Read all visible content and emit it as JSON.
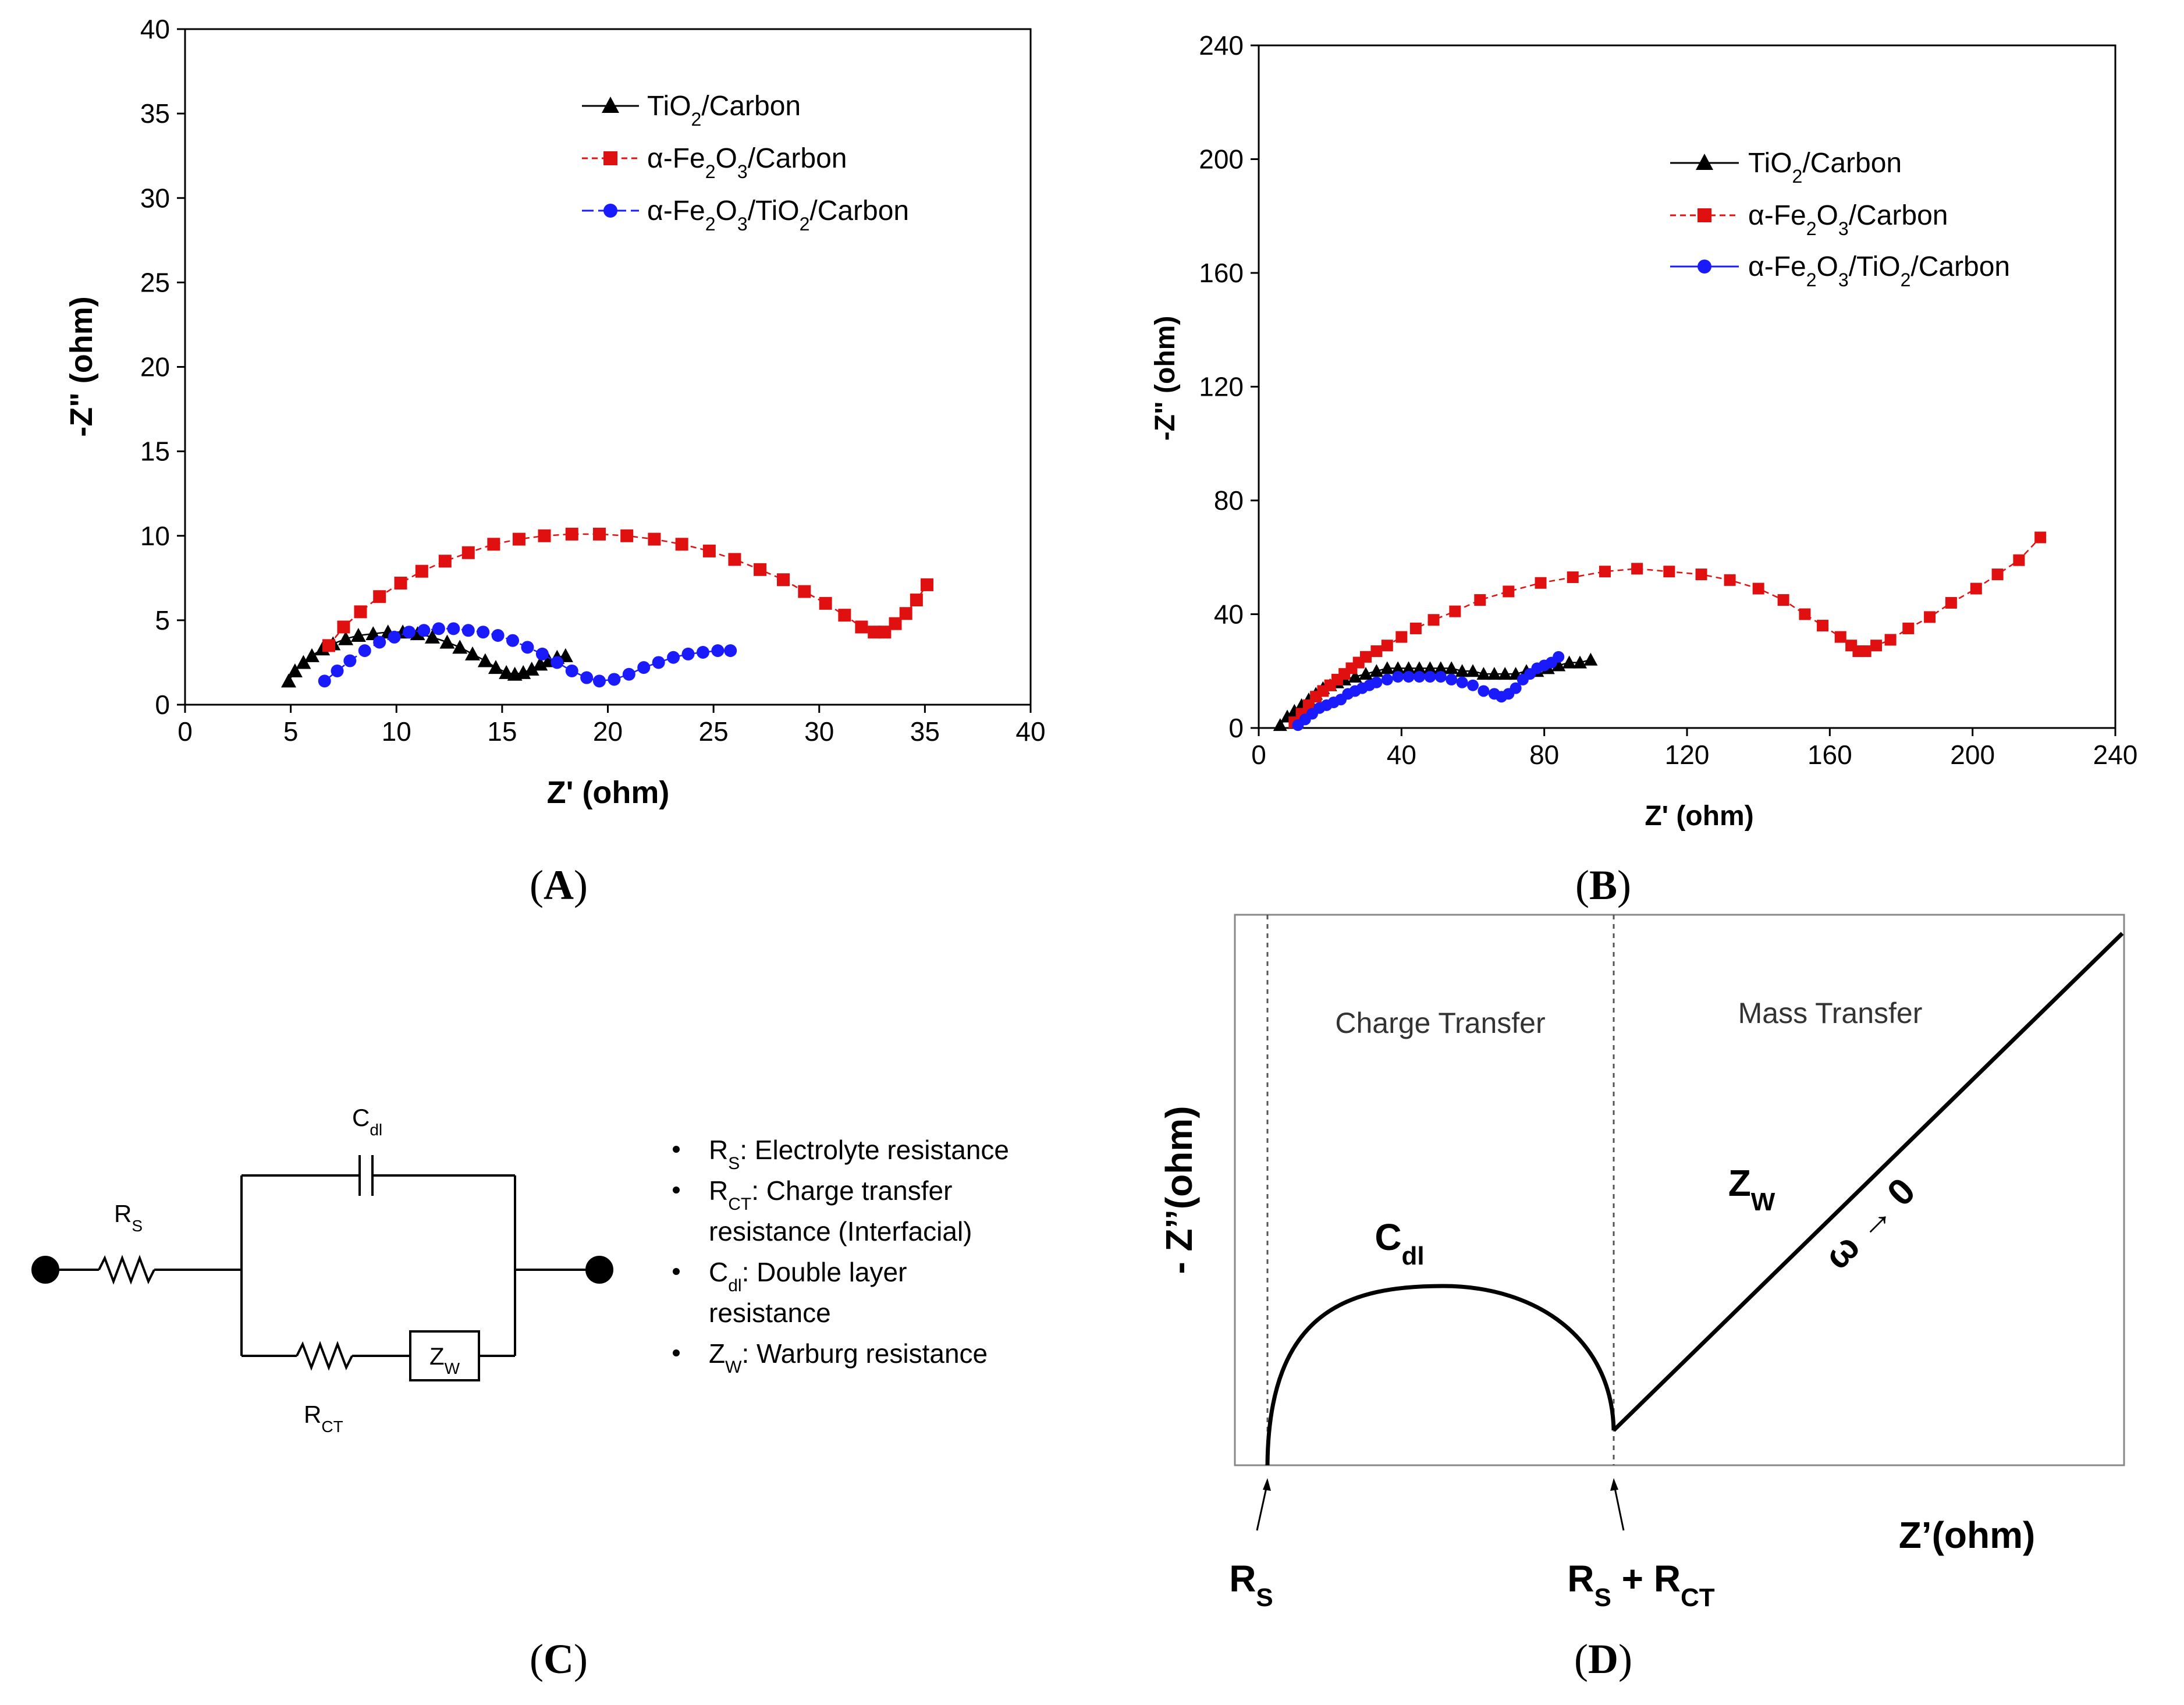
{
  "chart_data": [
    {
      "panel": "A",
      "type": "scatter",
      "xlabel": "Z' (ohm)",
      "ylabel": "-Z\" (ohm)",
      "xlim": [
        0,
        40
      ],
      "ylim": [
        0,
        40
      ],
      "xticks": [
        "0",
        "5",
        "10",
        "15",
        "20",
        "25",
        "30",
        "35",
        "40"
      ],
      "yticks": [
        "0",
        "5",
        "10",
        "15",
        "20",
        "25",
        "30",
        "35",
        "40"
      ],
      "legend": [
        "TiO2/Carbon",
        "α-Fe2O3/Carbon",
        "α-Fe2O3/TiO2/Carbon"
      ],
      "series": [
        {
          "name": "TiO2/Carbon",
          "color": "#000000",
          "marker": "triangle",
          "x": [
            4.9,
            5.2,
            5.6,
            6.0,
            6.5,
            7.0,
            7.6,
            8.2,
            8.9,
            9.6,
            10.3,
            11.0,
            11.7,
            12.4,
            13.0,
            13.6,
            14.2,
            14.7,
            15.2,
            15.6,
            16.0,
            16.4,
            16.8,
            17.2,
            17.6,
            18.0
          ],
          "y": [
            1.4,
            2.0,
            2.5,
            2.9,
            3.3,
            3.6,
            3.9,
            4.1,
            4.2,
            4.3,
            4.3,
            4.2,
            4.0,
            3.7,
            3.4,
            3.0,
            2.6,
            2.2,
            1.9,
            1.8,
            1.9,
            2.1,
            2.4,
            2.6,
            2.8,
            2.9
          ]
        },
        {
          "name": "α-Fe2O3/Carbon",
          "color": "#e01010",
          "marker": "square",
          "x": [
            6.8,
            7.5,
            8.3,
            9.2,
            10.2,
            11.2,
            12.3,
            13.4,
            14.6,
            15.8,
            17.0,
            18.3,
            19.6,
            20.9,
            22.2,
            23.5,
            24.8,
            26.0,
            27.2,
            28.3,
            29.3,
            30.3,
            31.2,
            32.0,
            32.6,
            33.1,
            33.6,
            34.1,
            34.6,
            35.1
          ],
          "y": [
            3.5,
            4.6,
            5.5,
            6.4,
            7.2,
            7.9,
            8.5,
            9.0,
            9.5,
            9.8,
            10.0,
            10.1,
            10.1,
            10.0,
            9.8,
            9.5,
            9.1,
            8.6,
            8.0,
            7.4,
            6.7,
            6.0,
            5.3,
            4.6,
            4.3,
            4.3,
            4.8,
            5.4,
            6.2,
            7.1
          ]
        },
        {
          "name": "α-Fe2O3/TiO2/Carbon",
          "color": "#1a1aff",
          "marker": "circle",
          "x": [
            6.6,
            7.2,
            7.8,
            8.5,
            9.2,
            9.9,
            10.6,
            11.3,
            12.0,
            12.7,
            13.4,
            14.1,
            14.8,
            15.5,
            16.2,
            16.9,
            17.6,
            18.3,
            19.0,
            19.6,
            20.3,
            21.0,
            21.7,
            22.4,
            23.1,
            23.8,
            24.5,
            25.2,
            25.8
          ],
          "y": [
            1.4,
            2.0,
            2.6,
            3.2,
            3.7,
            4.0,
            4.3,
            4.4,
            4.5,
            4.5,
            4.4,
            4.3,
            4.1,
            3.8,
            3.4,
            3.0,
            2.5,
            2.0,
            1.6,
            1.4,
            1.5,
            1.8,
            2.2,
            2.5,
            2.8,
            3.0,
            3.1,
            3.2,
            3.2
          ]
        }
      ]
    },
    {
      "panel": "B",
      "type": "scatter",
      "xlabel": "Z' (ohm)",
      "ylabel": "-Z\" (ohm)",
      "xlim": [
        0,
        240
      ],
      "ylim": [
        0,
        240
      ],
      "xticks": [
        "0",
        "40",
        "80",
        "120",
        "160",
        "200",
        "240"
      ],
      "yticks": [
        "0",
        "40",
        "80",
        "120",
        "160",
        "200",
        "240"
      ],
      "legend": [
        "TiO2/Carbon",
        "α-Fe2O3/Carbon",
        "α-Fe2O3/TiO2/Carbon"
      ],
      "series": [
        {
          "name": "TiO2/Carbon",
          "color": "#000000",
          "marker": "triangle",
          "x": [
            6,
            8,
            10,
            12,
            14,
            16,
            18,
            20,
            22,
            24,
            27,
            30,
            33,
            36,
            39,
            42,
            45,
            48,
            51,
            54,
            57,
            60,
            63,
            66,
            69,
            72,
            75,
            78,
            81,
            84,
            87,
            90,
            93
          ],
          "y": [
            1,
            4,
            6,
            8,
            10,
            12,
            14,
            15,
            16,
            17,
            18,
            19,
            20,
            21,
            21,
            21,
            21,
            21,
            21,
            21,
            20,
            20,
            19,
            19,
            19,
            19,
            20,
            20,
            21,
            22,
            23,
            23,
            24
          ]
        },
        {
          "name": "α-Fe2O3/Carbon",
          "color": "#e01010",
          "marker": "square",
          "x": [
            10,
            12,
            14,
            16,
            18,
            20,
            22,
            24,
            26,
            28,
            30,
            33,
            36,
            40,
            44,
            49,
            55,
            62,
            70,
            79,
            88,
            97,
            106,
            115,
            124,
            132,
            140,
            147,
            153,
            158,
            163,
            166,
            168,
            170,
            173,
            177,
            182,
            188,
            194,
            201,
            207,
            213,
            219
          ],
          "y": [
            2,
            5,
            8,
            11,
            13,
            15,
            17,
            19,
            21,
            23,
            25,
            27,
            29,
            32,
            35,
            38,
            41,
            45,
            48,
            51,
            53,
            55,
            56,
            55,
            54,
            52,
            49,
            45,
            40,
            36,
            32,
            29,
            27,
            27,
            29,
            31,
            35,
            39,
            44,
            49,
            54,
            59,
            67
          ]
        },
        {
          "name": "α-Fe2O3/TiO2/Carbon",
          "color": "#1a1aff",
          "marker": "circle",
          "x": [
            11,
            13,
            15,
            17,
            19,
            21,
            23,
            25,
            27,
            29,
            31,
            33,
            36,
            39,
            42,
            45,
            48,
            51,
            54,
            57,
            60,
            63,
            66,
            68,
            70,
            72,
            74,
            76,
            78,
            80,
            82,
            84
          ],
          "y": [
            1,
            3,
            5,
            7,
            8,
            9,
            10,
            12,
            13,
            14,
            15,
            16,
            17,
            18,
            18,
            18,
            18,
            18,
            17,
            16,
            15,
            13,
            12,
            11,
            12,
            14,
            17,
            19,
            21,
            22,
            23,
            25
          ]
        }
      ]
    }
  ],
  "panels": {
    "A": "(A)",
    "B": "(B)",
    "C": "(C)",
    "D": "(D)"
  },
  "legend_parts": [
    {
      "pre": "TiO",
      "sub": "2",
      "post": "/Carbon"
    },
    {
      "pre": "α-Fe",
      "sub1": "2",
      "mid": "O",
      "sub2": "3",
      "post": "/Carbon"
    },
    {
      "pre": "α-Fe",
      "sub1": "2",
      "mid": "O",
      "sub2": "3",
      "post2": "/TiO",
      "sub3": "2",
      "post": "/Carbon"
    }
  ],
  "circuit": {
    "Rs": "R",
    "Rs_sub": "S",
    "Cdl": "C",
    "Cdl_sub": "dl",
    "Rct": "R",
    "Rct_sub": "CT",
    "Zw": "Z",
    "Zw_sub": "W"
  },
  "bullets": [
    {
      "sym": "R",
      "sub": "S",
      "text": ": Electrolyte resistance",
      "cont": ""
    },
    {
      "sym": "R",
      "sub": "CT",
      "text": ": Charge transfer",
      "cont": "resistance (Interfacial)"
    },
    {
      "sym": "C",
      "sub": "dl",
      "text": ": Double layer",
      "cont": "resistance"
    },
    {
      "sym": "Z",
      "sub": "W",
      "text": ": Warburg resistance",
      "cont": ""
    }
  ],
  "schematic": {
    "charge_transfer": "Charge Transfer",
    "mass_transfer": "Mass Transfer",
    "ylabel": "- Z’’(ohm)",
    "xlabel": "Z’(ohm)",
    "cdl": "C",
    "cdl_sub": "dl",
    "zw": "Z",
    "zw_sub": "W",
    "omega": "ω → 0",
    "rs": "R",
    "rs_sub": "S",
    "rsrct_pre": "R",
    "rsrct_sub1": "S",
    "rsrct_mid": " + R",
    "rsrct_sub2": "CT"
  }
}
